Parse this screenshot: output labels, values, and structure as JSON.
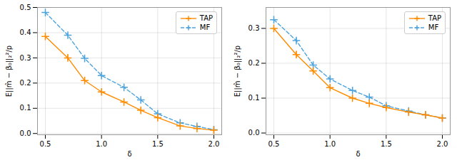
{
  "chart_data": [
    {
      "type": "line",
      "x": [
        0.5,
        0.7,
        0.85,
        1.0,
        1.2,
        1.35,
        1.5,
        1.7,
        1.85,
        2.0
      ],
      "series": [
        {
          "name": "TAP",
          "color": "#FF8C00",
          "line_style": "solid",
          "marker": "plus",
          "values": [
            0.385,
            0.3,
            0.21,
            0.165,
            0.125,
            0.092,
            0.063,
            0.03,
            0.02,
            0.013
          ],
          "errors": [
            0.012,
            0.01,
            0.009,
            0.009,
            0.009,
            0.007,
            0.006,
            0.004,
            0.003,
            0.002
          ]
        },
        {
          "name": "MF",
          "color": "#4CA3DD",
          "line_style": "dashed",
          "marker": "plus",
          "values": [
            0.48,
            0.39,
            0.298,
            0.23,
            0.183,
            0.133,
            0.078,
            0.042,
            0.028,
            0.015
          ],
          "errors": [
            0.008,
            0.007,
            0.007,
            0.006,
            0.006,
            0.005,
            0.005,
            0.003,
            0.003,
            0.002
          ]
        }
      ],
      "xlabel": "δ",
      "ylabel": "E||m̂ − β₀||₂²/p",
      "xlim": [
        0.43,
        2.07
      ],
      "xticks": [
        0.5,
        {
          "value": 1.0,
          "label": "1.0"
        },
        1.5,
        {
          "value": 2.0,
          "label": "2.0"
        }
      ],
      "ylim": [
        -0.005,
        0.5
      ],
      "yticks": [
        {
          "value": 0.0,
          "label": "0.0"
        },
        0.1,
        0.2,
        0.3,
        0.4,
        0.5
      ],
      "grid": true,
      "legend": "upper right"
    },
    {
      "type": "line",
      "x": [
        0.5,
        0.7,
        0.85,
        1.0,
        1.2,
        1.35,
        1.5,
        1.7,
        1.85,
        2.0
      ],
      "series": [
        {
          "name": "TAP",
          "color": "#FF8C00",
          "line_style": "solid",
          "marker": "plus",
          "values": [
            0.3,
            0.225,
            0.178,
            0.13,
            0.1,
            0.085,
            0.073,
            0.06,
            0.052,
            0.043
          ],
          "errors": [
            0.01,
            0.009,
            0.007,
            0.007,
            0.006,
            0.005,
            0.005,
            0.004,
            0.004,
            0.003
          ]
        },
        {
          "name": "MF",
          "color": "#4CA3DD",
          "line_style": "dashed",
          "marker": "plus",
          "values": [
            0.325,
            0.265,
            0.195,
            0.155,
            0.122,
            0.103,
            0.078,
            0.063,
            0.052,
            0.043
          ],
          "errors": [
            0.009,
            0.007,
            0.006,
            0.006,
            0.005,
            0.005,
            0.004,
            0.004,
            0.003,
            0.003
          ]
        }
      ],
      "xlabel": "δ",
      "ylabel": "E||m̂ − β₀||₂²/p",
      "xlim": [
        0.43,
        2.07
      ],
      "xticks": [
        0.5,
        {
          "value": 1.0,
          "label": "1.0"
        },
        1.5,
        {
          "value": 2.0,
          "label": "2.0"
        }
      ],
      "ylim": [
        -0.005,
        0.36
      ],
      "yticks": [
        {
          "value": 0.0,
          "label": "0.0"
        },
        0.1,
        0.2,
        0.3
      ],
      "grid": true,
      "legend": "upper right"
    }
  ]
}
